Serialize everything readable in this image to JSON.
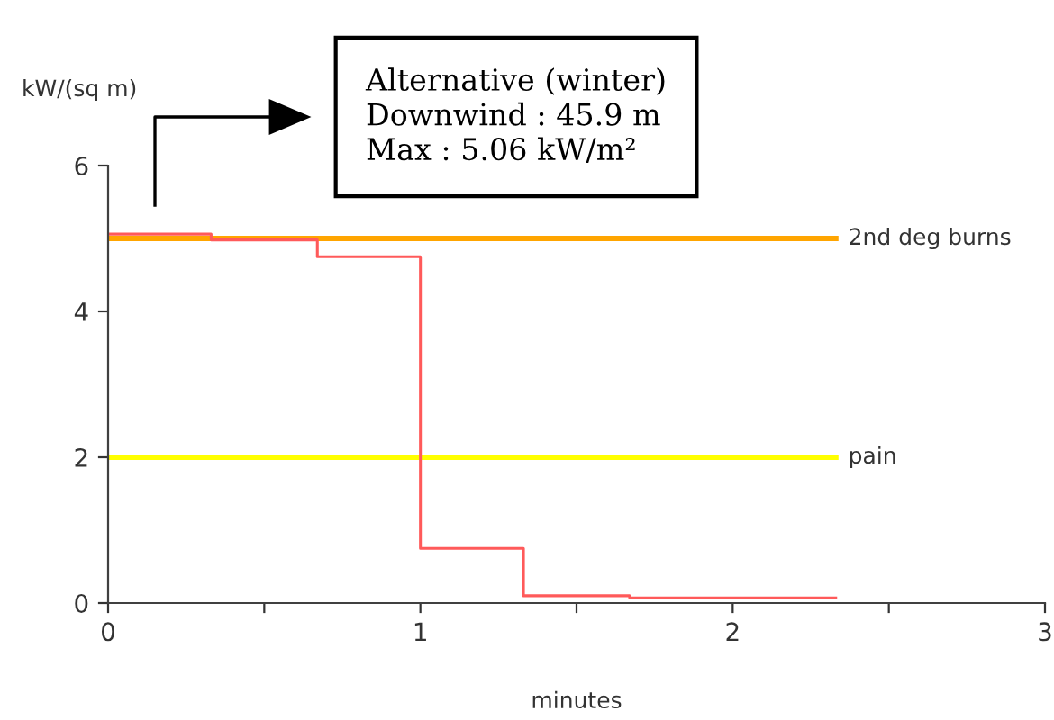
{
  "chart_data": {
    "type": "step",
    "xlabel": "minutes",
    "ylabel": "kW/(sq m)",
    "x": [
      0,
      0.33,
      0.67,
      1,
      1.33,
      1.67,
      2.33
    ],
    "series": [
      {
        "color": "#ff5a5a",
        "values": [
          5.06,
          4.98,
          4.75,
          0.75,
          0.1,
          0.07,
          0.07
        ]
      }
    ],
    "xlim": [
      0,
      3
    ],
    "ylim": [
      0,
      6
    ],
    "xticks": [
      0,
      {
        "value": 0.5,
        "label": null
      },
      1,
      {
        "value": 1.5,
        "label": null
      },
      2,
      {
        "value": 2.5,
        "label": null
      },
      3
    ],
    "yticks": [
      0,
      2,
      4,
      6
    ],
    "ref_lines": [
      {
        "axis": "y",
        "value": 5,
        "label": "2nd deg burns",
        "color": "#ffa500"
      },
      {
        "axis": "y",
        "value": 2,
        "label": "pain",
        "color": "#ffff00"
      }
    ],
    "annotations": [
      "Alternative (winter)\nDownwind : 45.9 m\nMax : 5.06 kW/m²"
    ],
    "grid": false
  }
}
